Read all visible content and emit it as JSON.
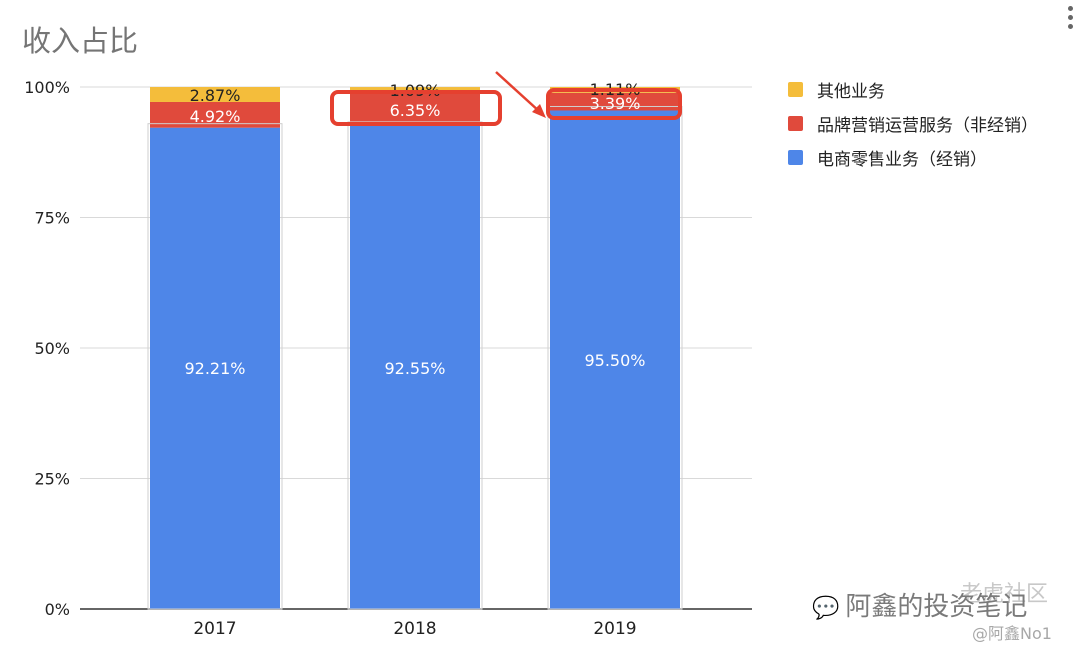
{
  "chart_data": {
    "type": "bar",
    "stacked": true,
    "percent": true,
    "title": "收入占比",
    "categories": [
      "2017",
      "2018",
      "2019"
    ],
    "series": [
      {
        "name": "电商零售业务（经销）",
        "color": "#4e86e8",
        "values": [
          92.21,
          92.55,
          95.5
        ],
        "labels": [
          "92.21%",
          "92.55%",
          "95.50%"
        ]
      },
      {
        "name": "品牌营销运营服务（非经销）",
        "color": "#e04a3c",
        "values": [
          4.92,
          6.35,
          3.39
        ],
        "labels": [
          "4.92%",
          "6.35%",
          "3.39%"
        ]
      },
      {
        "name": "其他业务",
        "color": "#f4bd3b",
        "values": [
          2.87,
          1.09,
          1.11
        ],
        "labels": [
          "2.87%",
          "1.09%",
          "1.11%"
        ]
      }
    ],
    "y_ticks": [
      "0%",
      "25%",
      "50%",
      "75%",
      "100%"
    ],
    "ylim": [
      0,
      100
    ],
    "grid": true,
    "legend_position": "right",
    "annotations": [
      "red box around 2018 非经销 label",
      "red box around 2019 非经销 label",
      "red arrow pointing to 2019 box"
    ]
  },
  "watermark": {
    "main": "阿鑫的投资笔记",
    "sub": "老虎社区",
    "handle": "@阿鑫No1",
    "icon": "wechat-icon"
  },
  "accent_color": "#e5402f"
}
